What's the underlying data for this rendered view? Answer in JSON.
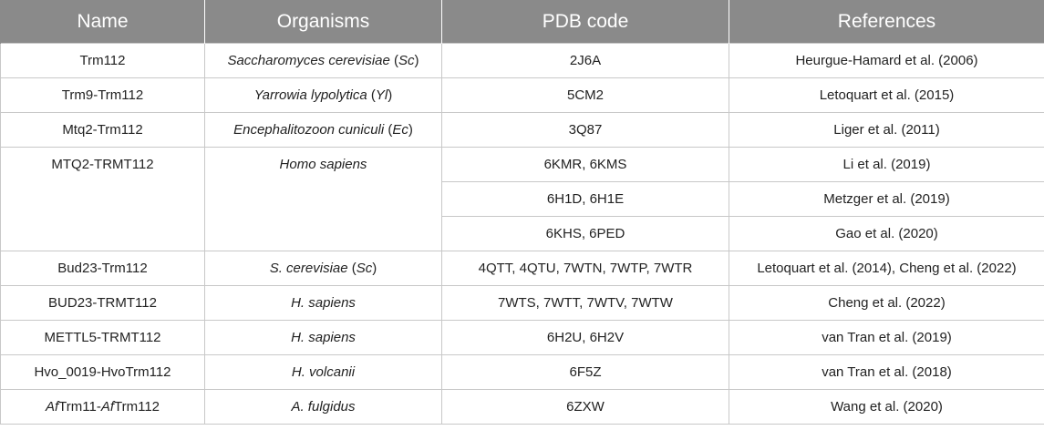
{
  "headers": [
    "Name",
    "Organisms",
    "PDB code",
    "References"
  ],
  "rows": [
    {
      "name_pre": "",
      "name_it": "",
      "name_mid": "Trm112",
      "name_it2": "",
      "name_post": "",
      "org_it": "Saccharomyces cerevisiae",
      "org_mid": " (",
      "org_it2": "Sc",
      "org_post": ")",
      "pdb": "2J6A",
      "ref": "Heurgue-Hamard et al. (2006)"
    },
    {
      "name_mid": "Trm9-Trm112",
      "org_it": "Yarrowia lypolytica",
      "org_mid": " (",
      "org_it2": "Yl",
      "org_post": ")",
      "pdb": "5CM2",
      "ref": "Letoquart et al. (2015)"
    },
    {
      "name_mid": "Mtq2-Trm112",
      "org_it": "Encephalitozoon cuniculi",
      "org_mid": " (",
      "org_it2": "Ec",
      "org_post": ")",
      "pdb": "3Q87",
      "ref": "Liger et al. (2011)"
    },
    {
      "name_mid": "MTQ2-TRMT112",
      "org_it": "Homo sapiens",
      "org_mid": "",
      "org_it2": "",
      "org_post": "",
      "pdb": "6KMR, 6KMS",
      "ref": "Li et al. (2019)"
    },
    {
      "pdb": "6H1D, 6H1E",
      "ref": "Metzger et al. (2019)"
    },
    {
      "pdb": "6KHS, 6PED",
      "ref": "Gao et al. (2020)"
    },
    {
      "name_mid": "Bud23-Trm112",
      "org_it": "S. cerevisiae",
      "org_mid": " (",
      "org_it2": "Sc",
      "org_post": ")",
      "pdb": "4QTT, 4QTU, 7WTN, 7WTP, 7WTR",
      "ref": "Letoquart et al. (2014), Cheng et al. (2022)"
    },
    {
      "name_mid": "BUD23-TRMT112",
      "org_it": "H. sapiens",
      "org_mid": "",
      "org_it2": "",
      "org_post": "",
      "pdb": "7WTS, 7WTT, 7WTV, 7WTW",
      "ref": "Cheng et al. (2022)"
    },
    {
      "name_mid": "METTL5-TRMT112",
      "org_it": "H. sapiens",
      "org_mid": "",
      "org_it2": "",
      "org_post": "",
      "pdb": "6H2U, 6H2V",
      "ref": "van Tran et al. (2019)"
    },
    {
      "name_mid": "Hvo_0019-HvoTrm112",
      "org_it": "H. volcanii",
      "org_mid": "",
      "org_it2": "",
      "org_post": "",
      "pdb": "6F5Z",
      "ref": "van Tran et al. (2018)"
    },
    {
      "name_it": "Af",
      "name_mid": "Trm11-",
      "name_it2": "Af",
      "name_post": "Trm112",
      "org_it": "A. fulgidus",
      "org_mid": "",
      "org_it2": "",
      "org_post": "",
      "pdb": "6ZXW",
      "ref": "Wang et al. (2020)"
    }
  ]
}
